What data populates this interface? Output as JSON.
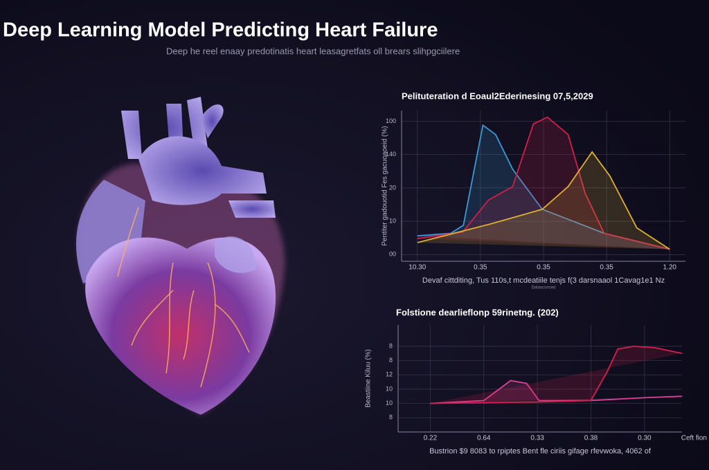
{
  "header": {
    "title": "Deep Learning Model   Predicting Heart Failure",
    "subtitle": "Deep he reel enaay predotinatis heart leasagretfats oll brears slihpgciilere"
  },
  "chart_data": [
    {
      "type": "line",
      "title": "Pelituteration d Eoaul2Ederinesing 07,5,2029",
      "ylabel": "Pentiter gadouotid Fes gacuoaoeid (%)",
      "xlabel": "Devaf cittditing, Tus 110s,t mcdeatiile tenjs f(3 darsnaaol 1Cavag1e1 Nz",
      "note": "Datasconced",
      "xlim": [
        -0.25,
        4.25
      ],
      "ylim": [
        -5,
        108
      ],
      "xticks": [
        {
          "value": 0,
          "label": "10.30"
        },
        {
          "value": 1,
          "label": "0.35"
        },
        {
          "value": 2,
          "label": "0.35"
        },
        {
          "value": 3,
          "label": "0.35"
        },
        {
          "value": 4,
          "label": "1.20"
        }
      ],
      "yticks": [
        {
          "value": 0,
          "label": "00"
        },
        {
          "value": 25,
          "label": "10"
        },
        {
          "value": 50,
          "label": "20"
        },
        {
          "value": 75,
          "label": "140"
        },
        100
      ],
      "grid": true,
      "series": [
        {
          "color": "#3a9bd5",
          "x": [
            0,
            0.53,
            0.73,
            0.89,
            1.04,
            1.24,
            1.51,
            1.98,
            2.96,
            4.0
          ],
          "values": [
            14,
            16,
            22,
            61,
            97,
            90,
            64,
            34,
            16,
            4
          ]
        },
        {
          "color": "#d0204a",
          "x": [
            0,
            0.72,
            1.13,
            1.51,
            1.84,
            2.06,
            2.39,
            2.66,
            2.96,
            4.0
          ],
          "values": [
            12,
            17,
            41,
            51,
            98,
            103,
            90,
            46,
            16,
            4
          ]
        },
        {
          "color": "#e0b030",
          "x": [
            0,
            1.16,
            1.98,
            2.39,
            2.77,
            3.05,
            3.48,
            4.0
          ],
          "values": [
            9,
            23,
            34,
            51,
            77,
            59,
            20,
            4
          ]
        }
      ]
    },
    {
      "type": "line",
      "title": "Folstione dearlieflonp 59rinetng. (202)",
      "ylabel": "Beastiine Kiluu (%)",
      "xlabel": "Bustrion $9 8083 to rpiptes Bent fle ciriis gifage rfevwoka, 4062 of",
      "xaxis_title": "Ceft fion",
      "xlim": [
        -0.6,
        4.7
      ],
      "ylim": [
        -1,
        6.5
      ],
      "xticks": [
        {
          "value": 0,
          "label": "0.22"
        },
        {
          "value": 1,
          "label": "0.64"
        },
        {
          "value": 2,
          "label": "0.33"
        },
        {
          "value": 3,
          "label": "0.38"
        },
        {
          "value": 4,
          "label": "0.30"
        }
      ],
      "yticks": [
        {
          "value": 0,
          "label": "8"
        },
        {
          "value": 1,
          "label": "10"
        },
        {
          "value": 2,
          "label": "10"
        },
        {
          "value": 3,
          "label": "12"
        },
        {
          "value": 4,
          "label": "8"
        },
        {
          "value": 5,
          "label": "8"
        }
      ],
      "grid": true,
      "series": [
        {
          "color": "#e0409a",
          "x": [
            0,
            1,
            1.5,
            1.8,
            2.03,
            3,
            4,
            4.7
          ],
          "values": [
            1.0,
            1.2,
            2.6,
            2.4,
            1.2,
            1.2,
            1.4,
            1.5
          ]
        },
        {
          "color": "#d8204a",
          "x": [
            0,
            2,
            3,
            3.3,
            3.5,
            3.8,
            4.2,
            4.7
          ],
          "values": [
            1.0,
            1.1,
            1.2,
            3.2,
            4.8,
            5.0,
            4.9,
            4.5
          ]
        }
      ]
    }
  ]
}
